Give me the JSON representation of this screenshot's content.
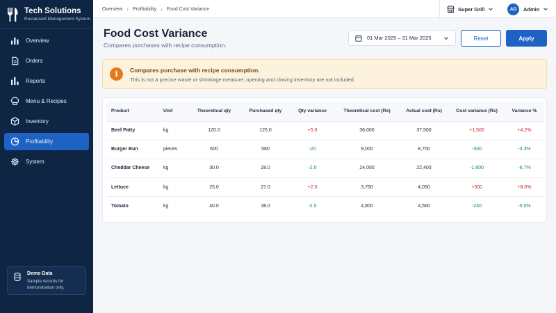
{
  "brand": {
    "title": "Tech Solutions",
    "subtitle": "Restaurant Management System"
  },
  "sidebar": {
    "items": [
      {
        "label": "Overview",
        "icon": "bar-chart-icon",
        "active": false
      },
      {
        "label": "Orders",
        "icon": "document-icon",
        "active": false
      },
      {
        "label": "Reports",
        "icon": "reports-icon",
        "active": false
      },
      {
        "label": "Menu & Recipes",
        "icon": "chef-hat-icon",
        "active": false
      },
      {
        "label": "Inventory",
        "icon": "box-icon",
        "active": false
      },
      {
        "label": "Profitability",
        "icon": "pie-chart-icon",
        "active": true
      },
      {
        "label": "System",
        "icon": "gear-icon",
        "active": false
      }
    ],
    "demo": {
      "title": "Demo Data",
      "text": "Sample records for demonstration only."
    }
  },
  "topbar": {
    "breadcrumb": [
      "Overview",
      "Profitability",
      "Food Cost Variance"
    ],
    "store": "Super Grill",
    "user_initials": "AD",
    "user_name": "Admin"
  },
  "header": {
    "title": "Food Cost Variance",
    "subtitle": "Compares purchases with recipe consumption.",
    "date_range": "01 Mar 2025 – 31 Mar 2025",
    "reset_label": "Reset",
    "apply_label": "Apply"
  },
  "alert": {
    "title": "Compares purchase with recipe consumption.",
    "text": "This is not a precise waste or shrinkage measure; opening and closing inventory are not included."
  },
  "table": {
    "columns": [
      "Product",
      "Unit",
      "Theoretical qty",
      "Purchased qty",
      "Qty variance",
      "Theoretical cost (Rs)",
      "Actual cost (Rs)",
      "Cost variance (Rs)",
      "Variance %"
    ],
    "rows": [
      {
        "product": "Beef Patty",
        "unit": "kg",
        "theo_qty": "120.0",
        "purch_qty": "125.0",
        "qty_var": "+5.0",
        "theo_cost": "36,000",
        "actual_cost": "37,500",
        "cost_var": "+1,500",
        "var_pct": "+4.2%",
        "direction": "pos"
      },
      {
        "product": "Burger Bun",
        "unit": "pieces",
        "theo_qty": "600",
        "purch_qty": "580",
        "qty_var": "-20",
        "theo_cost": "9,000",
        "actual_cost": "8,700",
        "cost_var": "-300",
        "var_pct": "-3.3%",
        "direction": "neg"
      },
      {
        "product": "Cheddar Cheese",
        "unit": "kg",
        "theo_qty": "30.0",
        "purch_qty": "28.0",
        "qty_var": "-2.0",
        "theo_cost": "24,000",
        "actual_cost": "22,400",
        "cost_var": "-1,600",
        "var_pct": "-6.7%",
        "direction": "neg"
      },
      {
        "product": "Lettuce",
        "unit": "kg",
        "theo_qty": "25.0",
        "purch_qty": "27.0",
        "qty_var": "+2.0",
        "theo_cost": "3,750",
        "actual_cost": "4,050",
        "cost_var": "+300",
        "var_pct": "+8.0%",
        "direction": "pos"
      },
      {
        "product": "Tomato",
        "unit": "kg",
        "theo_qty": "40.0",
        "purch_qty": "38.0",
        "qty_var": "-2.0",
        "theo_cost": "4,800",
        "actual_cost": "4,560",
        "cost_var": "-240",
        "var_pct": "-5.0%",
        "direction": "neg"
      }
    ]
  },
  "colors": {
    "sidebar_bg": "#0f2544",
    "accent": "#1e63c4",
    "positive_variance": "#c6281f",
    "negative_variance": "#1f8a3b",
    "alert_bg": "#fdf2de",
    "alert_icon": "#e07a1c"
  }
}
